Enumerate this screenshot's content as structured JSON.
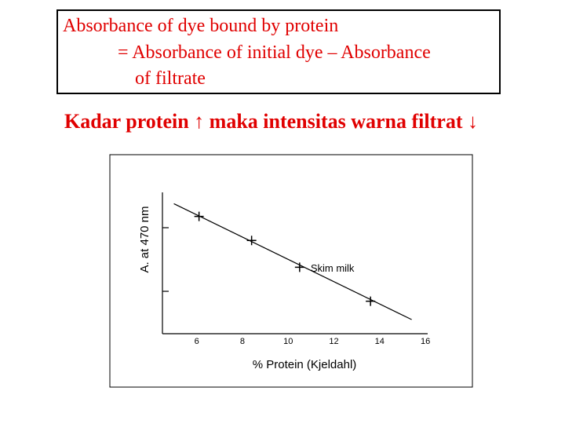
{
  "header": {
    "lines": [
      "Absorbance of  dye bound by protein",
      "= Absorbance of initial dye – Absorbance",
      "of  filtrate"
    ]
  },
  "subtitle": "Kadar protein ↑ maka intensitas warna filtrat ↓",
  "chart_data": {
    "type": "scatter",
    "xlabel": "% Protein (Kjeldahl)",
    "ylabel": "A. at 470 nm",
    "xlim": [
      4.5,
      16.1
    ],
    "xticks": [
      6,
      8,
      10,
      12,
      14,
      16
    ],
    "ylim": [
      0,
      1
    ],
    "yticks": [
      0.3,
      0.75
    ],
    "ytick_labels": false,
    "color": "#000000",
    "points": {
      "x": [
        6.1,
        8.4,
        10.5,
        13.6
      ],
      "y": [
        0.83,
        0.66,
        0.47,
        0.23
      ]
    },
    "fit_line": {
      "x": [
        5.0,
        15.4
      ],
      "y": [
        0.92,
        0.1
      ]
    },
    "annotation": "Skim milk"
  }
}
